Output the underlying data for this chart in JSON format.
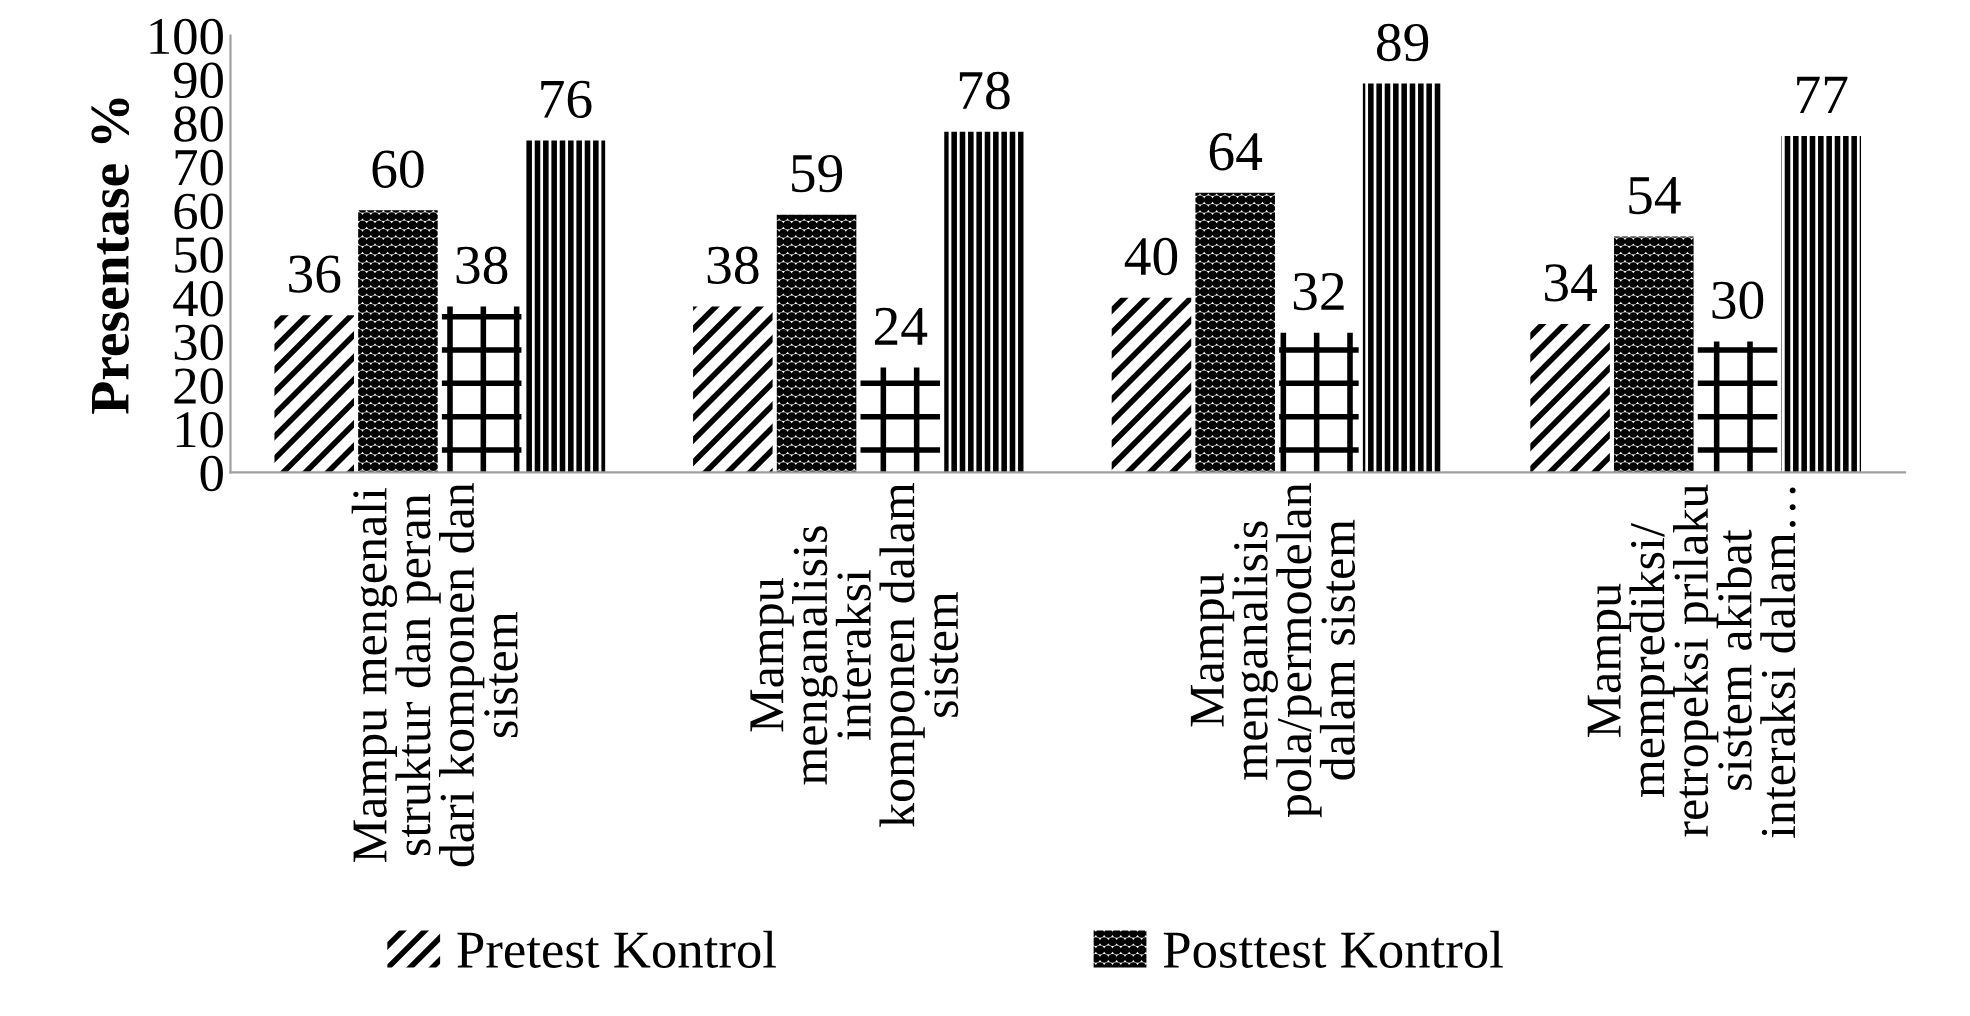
{
  "chart_data": {
    "type": "bar",
    "ylabel": "Presentase %",
    "categories": [
      "Mampu mengenali\nstruktur dan peran\ndari komponen dan\nsistem",
      "Mampu\nmenganalisis\ninteraksi\nkomponen dalam\nsistem",
      "Mampu\nmenganalisis\npola/permodelan\ndalam sistem",
      "Mampu\nmemprediksi/\nretropeksi prilaku\nsistem akibat\ninteraksi dalam…"
    ],
    "series": [
      {
        "name": "Pretest Kontrol",
        "color": "#000000",
        "values": [
          36,
          38,
          40,
          34
        ]
      },
      {
        "name": "Posttest Kontrol",
        "color": "#000000",
        "values": [
          60,
          59,
          64,
          54
        ]
      },
      {
        "color": "#000000",
        "values": [
          38,
          24,
          32,
          30
        ]
      },
      {
        "color": "#000000",
        "values": [
          76,
          78,
          89,
          77
        ]
      }
    ],
    "ylim": [
      0,
      100
    ],
    "yticks": [
      0,
      10,
      20,
      30,
      40,
      50,
      60,
      70,
      80,
      90,
      100
    ],
    "data_labels": true,
    "grid": false,
    "legend": "bottom"
  }
}
